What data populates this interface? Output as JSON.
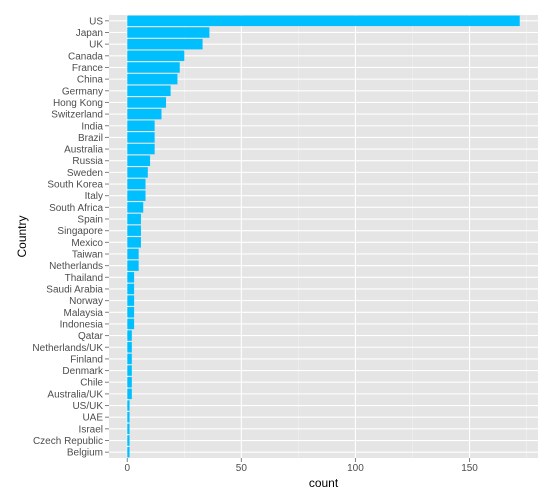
{
  "chart_data": {
    "type": "bar",
    "orientation": "horizontal",
    "xlabel": "count",
    "ylabel": "Country",
    "xlim": [
      -8,
      180
    ],
    "x_ticks": [
      0,
      50,
      100,
      150
    ],
    "grid": true,
    "colors": {
      "bar": "#00BFFF",
      "panel": "#E5E5E5",
      "grid_major": "#FFFFFF",
      "grid_minor": "#F2F2F2",
      "tick_text": "#4D4D4D",
      "tick_mark": "#7F7F7F"
    },
    "categories": [
      "US",
      "Japan",
      "UK",
      "Canada",
      "France",
      "China",
      "Germany",
      "Hong Kong",
      "Switzerland",
      "India",
      "Brazil",
      "Australia",
      "Russia",
      "Sweden",
      "South Korea",
      "Italy",
      "South Africa",
      "Spain",
      "Singapore",
      "Mexico",
      "Taiwan",
      "Netherlands",
      "Thailand",
      "Saudi Arabia",
      "Norway",
      "Malaysia",
      "Indonesia",
      "Qatar",
      "Netherlands/UK",
      "Finland",
      "Denmark",
      "Chile",
      "Australia/UK",
      "US/UK",
      "UAE",
      "Israel",
      "Czech Republic",
      "Belgium"
    ],
    "values": [
      172,
      36,
      33,
      25,
      23,
      22,
      19,
      17,
      15,
      12,
      12,
      12,
      10,
      9,
      8,
      8,
      7,
      6,
      6,
      6,
      5,
      5,
      3,
      3,
      3,
      3,
      3,
      2,
      2,
      2,
      2,
      2,
      2,
      1,
      1,
      1,
      1,
      1
    ]
  }
}
